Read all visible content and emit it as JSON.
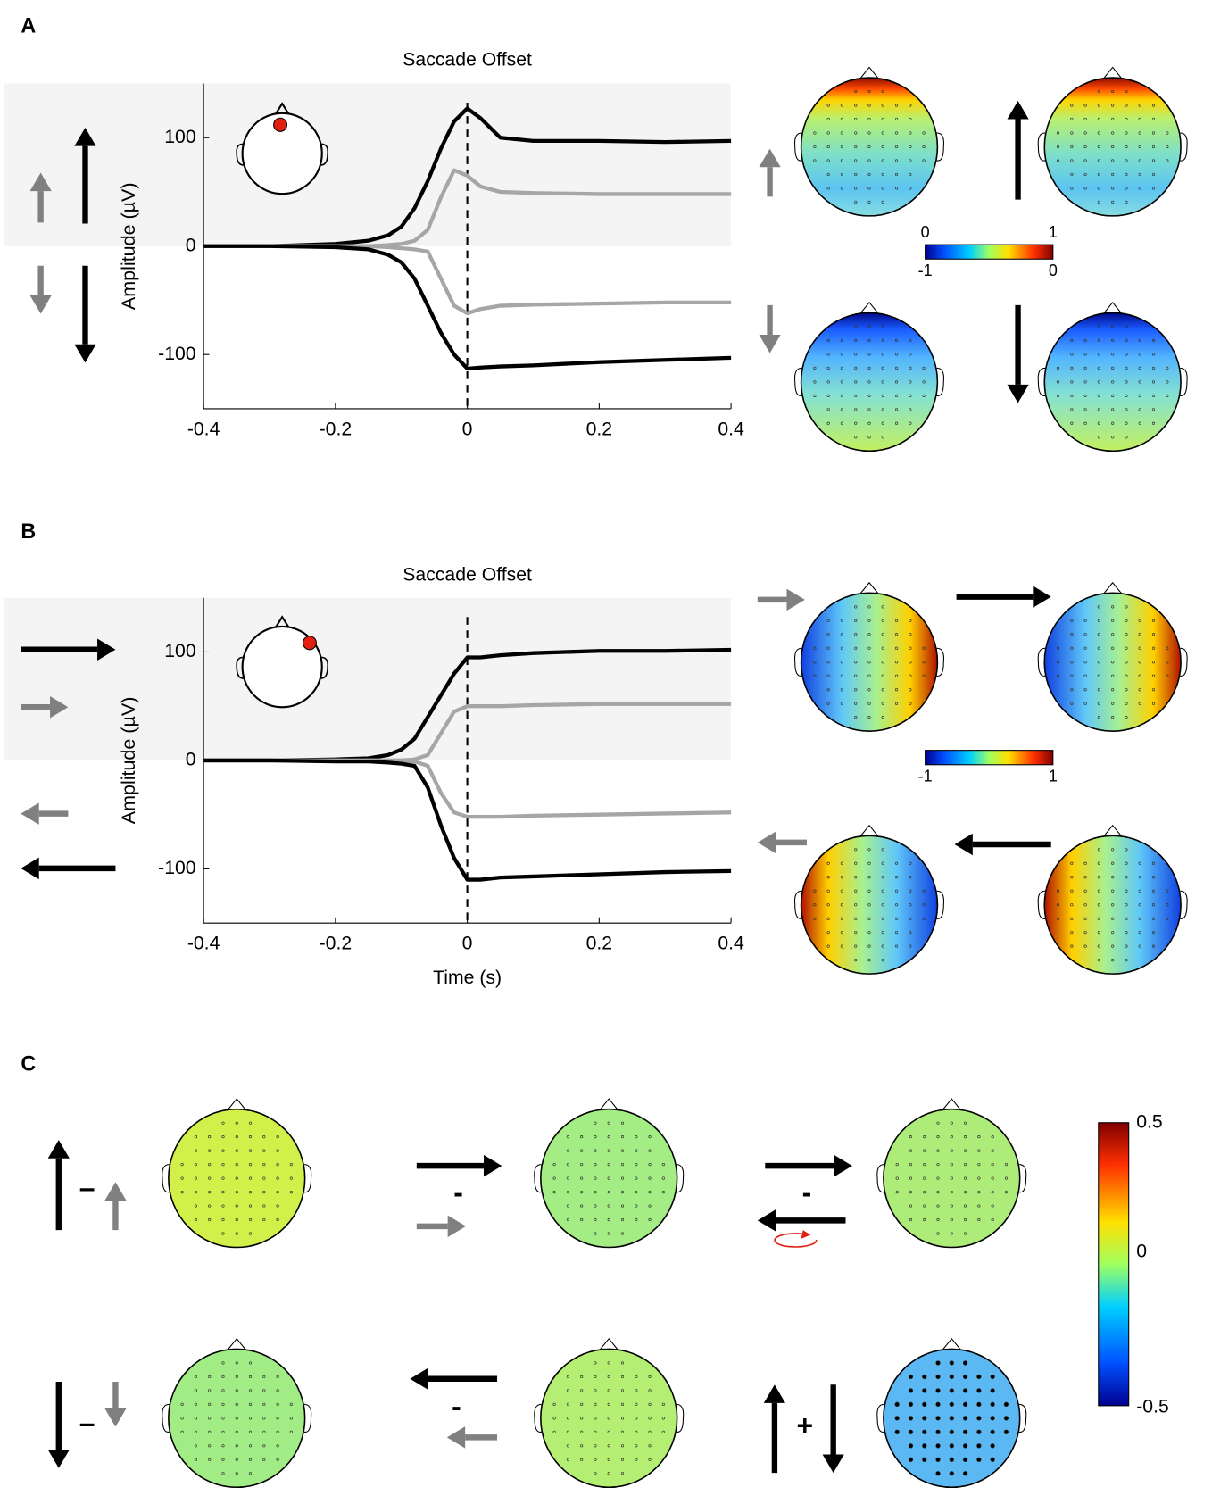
{
  "chart_data": [
    {
      "type": "line",
      "title": "Saccade Offset",
      "y_label": "Amplitude (µV)",
      "x": [
        -0.4,
        -0.3,
        -0.2,
        -0.15,
        -0.12,
        -0.1,
        -0.08,
        -0.06,
        -0.04,
        -0.02,
        0,
        0.02,
        0.05,
        0.1,
        0.2,
        0.3,
        0.4
      ],
      "series": [
        {
          "color": "#000000",
          "values": [
            0,
            0,
            2,
            5,
            10,
            18,
            35,
            60,
            90,
            115,
            127,
            118,
            100,
            97,
            97,
            96,
            97
          ]
        },
        {
          "color": "#a6a6a6",
          "values": [
            0,
            0,
            0,
            0,
            1,
            2,
            5,
            15,
            45,
            70,
            65,
            55,
            50,
            49,
            48,
            48,
            48
          ]
        },
        {
          "color": "#a6a6a6",
          "values": [
            0,
            0,
            0,
            0,
            -1,
            -2,
            -3,
            -5,
            -30,
            -55,
            -62,
            -58,
            -55,
            -54,
            -53,
            -52,
            -52
          ]
        },
        {
          "color": "#000000",
          "values": [
            0,
            0,
            -1,
            -3,
            -8,
            -15,
            -30,
            -55,
            -80,
            -100,
            -113,
            -112,
            -111,
            -110,
            -107,
            -105,
            -103
          ]
        }
      ],
      "xlim": [
        -0.4,
        0.4
      ],
      "xticks": [
        -0.4,
        -0.2,
        0,
        0.2,
        0.4
      ],
      "ylim": [
        -150,
        150
      ],
      "yticks": [
        -100,
        0,
        100
      ],
      "vline": 0,
      "shaded_ylim": [
        0,
        150
      ]
    },
    {
      "type": "line",
      "title": "Saccade Offset",
      "y_label": "Amplitude (µV)",
      "x_label": "Time (s)",
      "x": [
        -0.4,
        -0.3,
        -0.2,
        -0.15,
        -0.12,
        -0.1,
        -0.08,
        -0.06,
        -0.04,
        -0.02,
        0,
        0.02,
        0.05,
        0.1,
        0.2,
        0.3,
        0.4
      ],
      "series": [
        {
          "color": "#000000",
          "values": [
            0,
            0,
            1,
            2,
            5,
            10,
            20,
            40,
            60,
            80,
            95,
            95,
            97,
            99,
            101,
            101,
            102
          ]
        },
        {
          "color": "#a6a6a6",
          "values": [
            0,
            0,
            0,
            0,
            0,
            0,
            1,
            5,
            25,
            45,
            50,
            50,
            50,
            51,
            52,
            52,
            52
          ]
        },
        {
          "color": "#a6a6a6",
          "values": [
            0,
            0,
            0,
            0,
            0,
            0,
            -1,
            -5,
            -30,
            -48,
            -52,
            -52,
            -52,
            -51,
            -50,
            -49,
            -48
          ]
        },
        {
          "color": "#000000",
          "values": [
            0,
            0,
            -1,
            -1,
            -2,
            -3,
            -5,
            -25,
            -60,
            -90,
            -110,
            -110,
            -108,
            -107,
            -105,
            -103,
            -102
          ]
        }
      ],
      "xlim": [
        -0.4,
        0.4
      ],
      "xticks": [
        -0.4,
        -0.2,
        0,
        0.2,
        0.4
      ],
      "ylim": [
        -150,
        150
      ],
      "yticks": [
        -100,
        0,
        100
      ],
      "vline": 0,
      "shaded_ylim": [
        0,
        150
      ]
    }
  ],
  "figure": {
    "panels": [
      "A",
      "B",
      "C"
    ],
    "colorbar_a": {
      "top": [
        "0",
        "1"
      ],
      "bottom": [
        "-1",
        "0"
      ]
    },
    "colorbar_b": [
      "-1",
      "1"
    ],
    "colorbar_c": [
      "0.5",
      "0",
      "-0.5"
    ],
    "signs": [
      "–",
      "-",
      "-",
      "–",
      "-",
      "+"
    ]
  }
}
